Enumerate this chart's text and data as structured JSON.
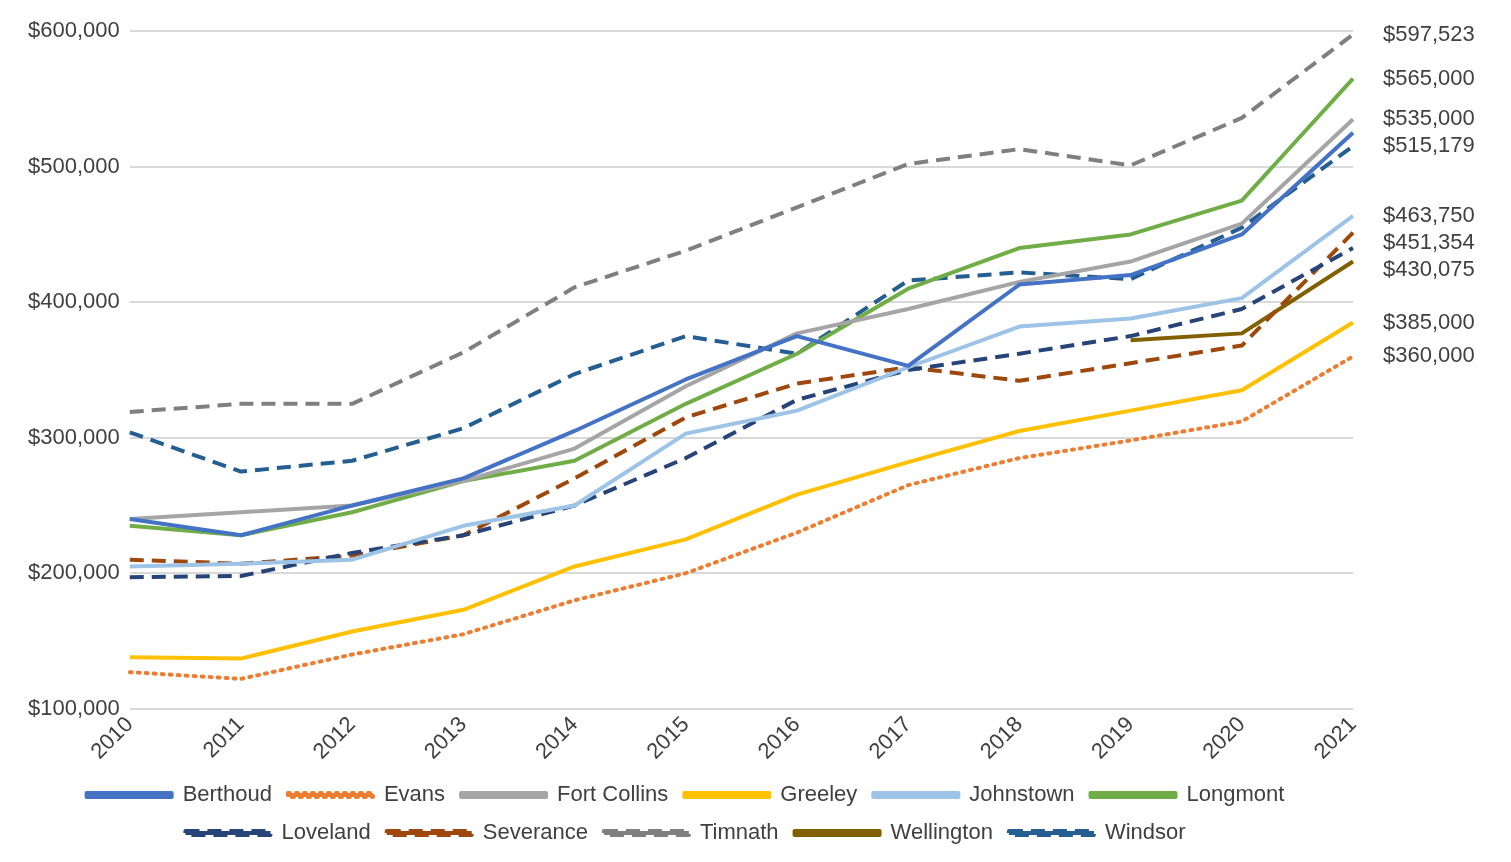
{
  "chart_data": {
    "type": "line",
    "categories": [
      "2010",
      "2011",
      "2012",
      "2013",
      "2014",
      "2015",
      "2016",
      "2017",
      "2018",
      "2019",
      "2020",
      "2021"
    ],
    "ylim": [
      100000,
      600000
    ],
    "yticks": [
      {
        "value": 100000,
        "label": "$100,000"
      },
      {
        "value": 200000,
        "label": "$200,000"
      },
      {
        "value": 300000,
        "label": "$300,000"
      },
      {
        "value": 400000,
        "label": "$400,000"
      },
      {
        "value": 500000,
        "label": "$500,000"
      },
      {
        "value": 600000,
        "label": "$600,000"
      }
    ],
    "grid": "y",
    "legend": "bottom",
    "marker": "none",
    "series": [
      {
        "name": "Berthoud",
        "color": "#4472c4",
        "line_style": "solid",
        "values": [
          240000,
          228000,
          250000,
          270000,
          305000,
          343000,
          375000,
          353000,
          413000,
          420000,
          450000,
          525000
        ],
        "value_labels": [
          null,
          null,
          null,
          null,
          null,
          null,
          null,
          null,
          null,
          null,
          null,
          null
        ]
      },
      {
        "name": "Evans",
        "color": "#ed7d31",
        "line_style": "dotted",
        "values": [
          127000,
          122000,
          140000,
          155000,
          180000,
          200000,
          230000,
          265000,
          285000,
          298000,
          312000,
          360000
        ],
        "value_labels": [
          null,
          null,
          null,
          null,
          null,
          null,
          null,
          null,
          null,
          null,
          null,
          "$360,000"
        ]
      },
      {
        "name": "Fort Collins",
        "color": "#a5a5a5",
        "line_style": "solid",
        "values": [
          240000,
          245000,
          250000,
          268000,
          292000,
          338000,
          377000,
          395000,
          415000,
          430000,
          458000,
          535000
        ],
        "value_labels": [
          null,
          null,
          null,
          null,
          null,
          null,
          null,
          null,
          null,
          null,
          null,
          "$535,000"
        ]
      },
      {
        "name": "Greeley",
        "color": "#ffc000",
        "line_style": "solid",
        "values": [
          138000,
          137000,
          157000,
          173000,
          205000,
          225000,
          258000,
          282000,
          305000,
          320000,
          335000,
          385000
        ],
        "value_labels": [
          null,
          null,
          null,
          null,
          null,
          null,
          null,
          null,
          null,
          null,
          null,
          "$385,000"
        ]
      },
      {
        "name": "Johnstown",
        "color": "#9dc3e6",
        "line_style": "solid",
        "values": [
          205000,
          207000,
          210000,
          235000,
          250000,
          303000,
          320000,
          352000,
          382000,
          388000,
          403000,
          463750
        ],
        "value_labels": [
          null,
          null,
          null,
          null,
          null,
          null,
          null,
          null,
          null,
          null,
          null,
          "$463,750"
        ]
      },
      {
        "name": "Longmont",
        "color": "#70ad47",
        "line_style": "solid",
        "values": [
          235000,
          228000,
          245000,
          268000,
          283000,
          325000,
          362000,
          410000,
          440000,
          450000,
          475000,
          565000
        ],
        "value_labels": [
          null,
          null,
          null,
          null,
          null,
          null,
          null,
          null,
          null,
          null,
          null,
          "$565,000"
        ]
      },
      {
        "name": "Loveland",
        "color": "#264478",
        "line_style": "dashed",
        "values": [
          197000,
          198000,
          215000,
          228000,
          250000,
          285000,
          328000,
          350000,
          362000,
          375000,
          395000,
          440000
        ],
        "value_labels": [
          null,
          null,
          null,
          null,
          null,
          null,
          null,
          null,
          null,
          null,
          null,
          null
        ]
      },
      {
        "name": "Severance",
        "color": "#9e480e",
        "line_style": "dashed",
        "values": [
          210000,
          207000,
          213000,
          228000,
          270000,
          315000,
          340000,
          352000,
          342000,
          355000,
          368000,
          451354
        ],
        "value_labels": [
          null,
          null,
          null,
          null,
          null,
          null,
          null,
          null,
          null,
          null,
          null,
          "$451,354"
        ]
      },
      {
        "name": "Timnath",
        "color": "#7f7f7f",
        "line_style": "dashed",
        "values": [
          319000,
          325000,
          325000,
          363000,
          411000,
          438000,
          470000,
          502000,
          513000,
          501000,
          536000,
          597523
        ],
        "value_labels": [
          null,
          null,
          null,
          null,
          null,
          null,
          null,
          null,
          null,
          null,
          null,
          "$597,523"
        ]
      },
      {
        "name": "Wellington",
        "color": "#806000",
        "line_style": "solid",
        "values": [
          null,
          null,
          null,
          null,
          null,
          null,
          null,
          null,
          null,
          372000,
          377000,
          430075
        ],
        "value_labels": [
          null,
          null,
          null,
          null,
          null,
          null,
          null,
          null,
          null,
          null,
          null,
          "$430,075"
        ]
      },
      {
        "name": "Windsor",
        "color": "#255e91",
        "line_style": "dashed",
        "values": [
          304000,
          275000,
          283000,
          307000,
          347000,
          375000,
          362000,
          416000,
          422000,
          417000,
          455000,
          515179
        ],
        "value_labels": [
          null,
          null,
          null,
          null,
          null,
          null,
          null,
          null,
          null,
          null,
          null,
          "$515,179"
        ]
      }
    ]
  }
}
